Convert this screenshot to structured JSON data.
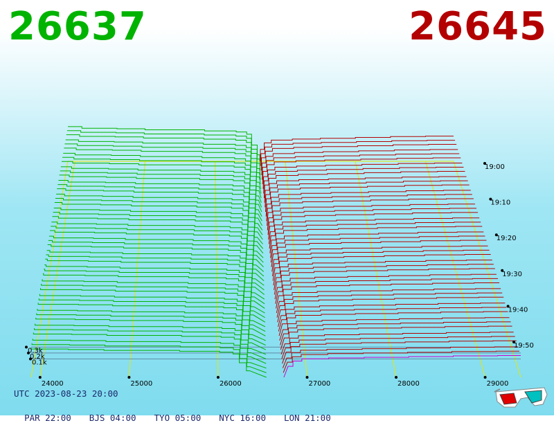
{
  "header": {
    "bid_price": "26637",
    "ask_price": "26645"
  },
  "colors": {
    "bid": "#00b300",
    "ask": "#b30000",
    "latest_ask": "#cc00cc",
    "grid": "#e6e600",
    "timestamp_text": "#1a2a6c"
  },
  "footer": {
    "utc": "UTC 2023-08-23 20:00",
    "zones": [
      "PAR 22:00",
      "BJS 04:00",
      "TYO 05:00",
      "NYC 16:00",
      "LON 21:00"
    ]
  },
  "icons": {
    "anaglyph_glasses": "3d-glasses-icon"
  },
  "chart_data": {
    "type": "3d-depth-surface",
    "price_ticks": [
      "24000",
      "25000",
      "26000",
      "27000",
      "28000",
      "29000"
    ],
    "price_tick_values": [
      24000,
      25000,
      26000,
      27000,
      28000,
      29000
    ],
    "price_range": [
      23900,
      29400
    ],
    "volume_ticks": [
      "0.1k",
      "0.2k",
      "0.3k"
    ],
    "volume_tick_values": [
      100,
      200,
      300
    ],
    "time_ticks": [
      "19:00",
      "19:10",
      "19:20",
      "19:30",
      "19:40",
      "19:50"
    ],
    "time_range": [
      "19:00",
      "20:00"
    ],
    "snapshot_count": 48,
    "bid_price": 26637,
    "ask_price": 26645,
    "bid_steps": [
      {
        "price": 23900,
        "volume": 320
      },
      {
        "price": 24100,
        "volume": 305
      },
      {
        "price": 24600,
        "volume": 300
      },
      {
        "price": 25000,
        "volume": 290
      },
      {
        "price": 25850,
        "volume": 280
      },
      {
        "price": 26300,
        "volume": 270
      },
      {
        "price": 26450,
        "volume": 250
      },
      {
        "price": 26520,
        "volume": 150
      },
      {
        "price": 26600,
        "volume": 60
      },
      {
        "price": 26637,
        "volume": 0
      }
    ],
    "ask_steps": [
      {
        "price": 26645,
        "volume": 0
      },
      {
        "price": 26700,
        "volume": 110
      },
      {
        "price": 26800,
        "volume": 170
      },
      {
        "price": 27100,
        "volume": 195
      },
      {
        "price": 27500,
        "volume": 205
      },
      {
        "price": 28000,
        "volume": 212
      },
      {
        "price": 28500,
        "volume": 220
      },
      {
        "price": 29000,
        "volume": 228
      },
      {
        "price": 29400,
        "volume": 232
      }
    ],
    "ask_latest_max_volume": 60
  }
}
